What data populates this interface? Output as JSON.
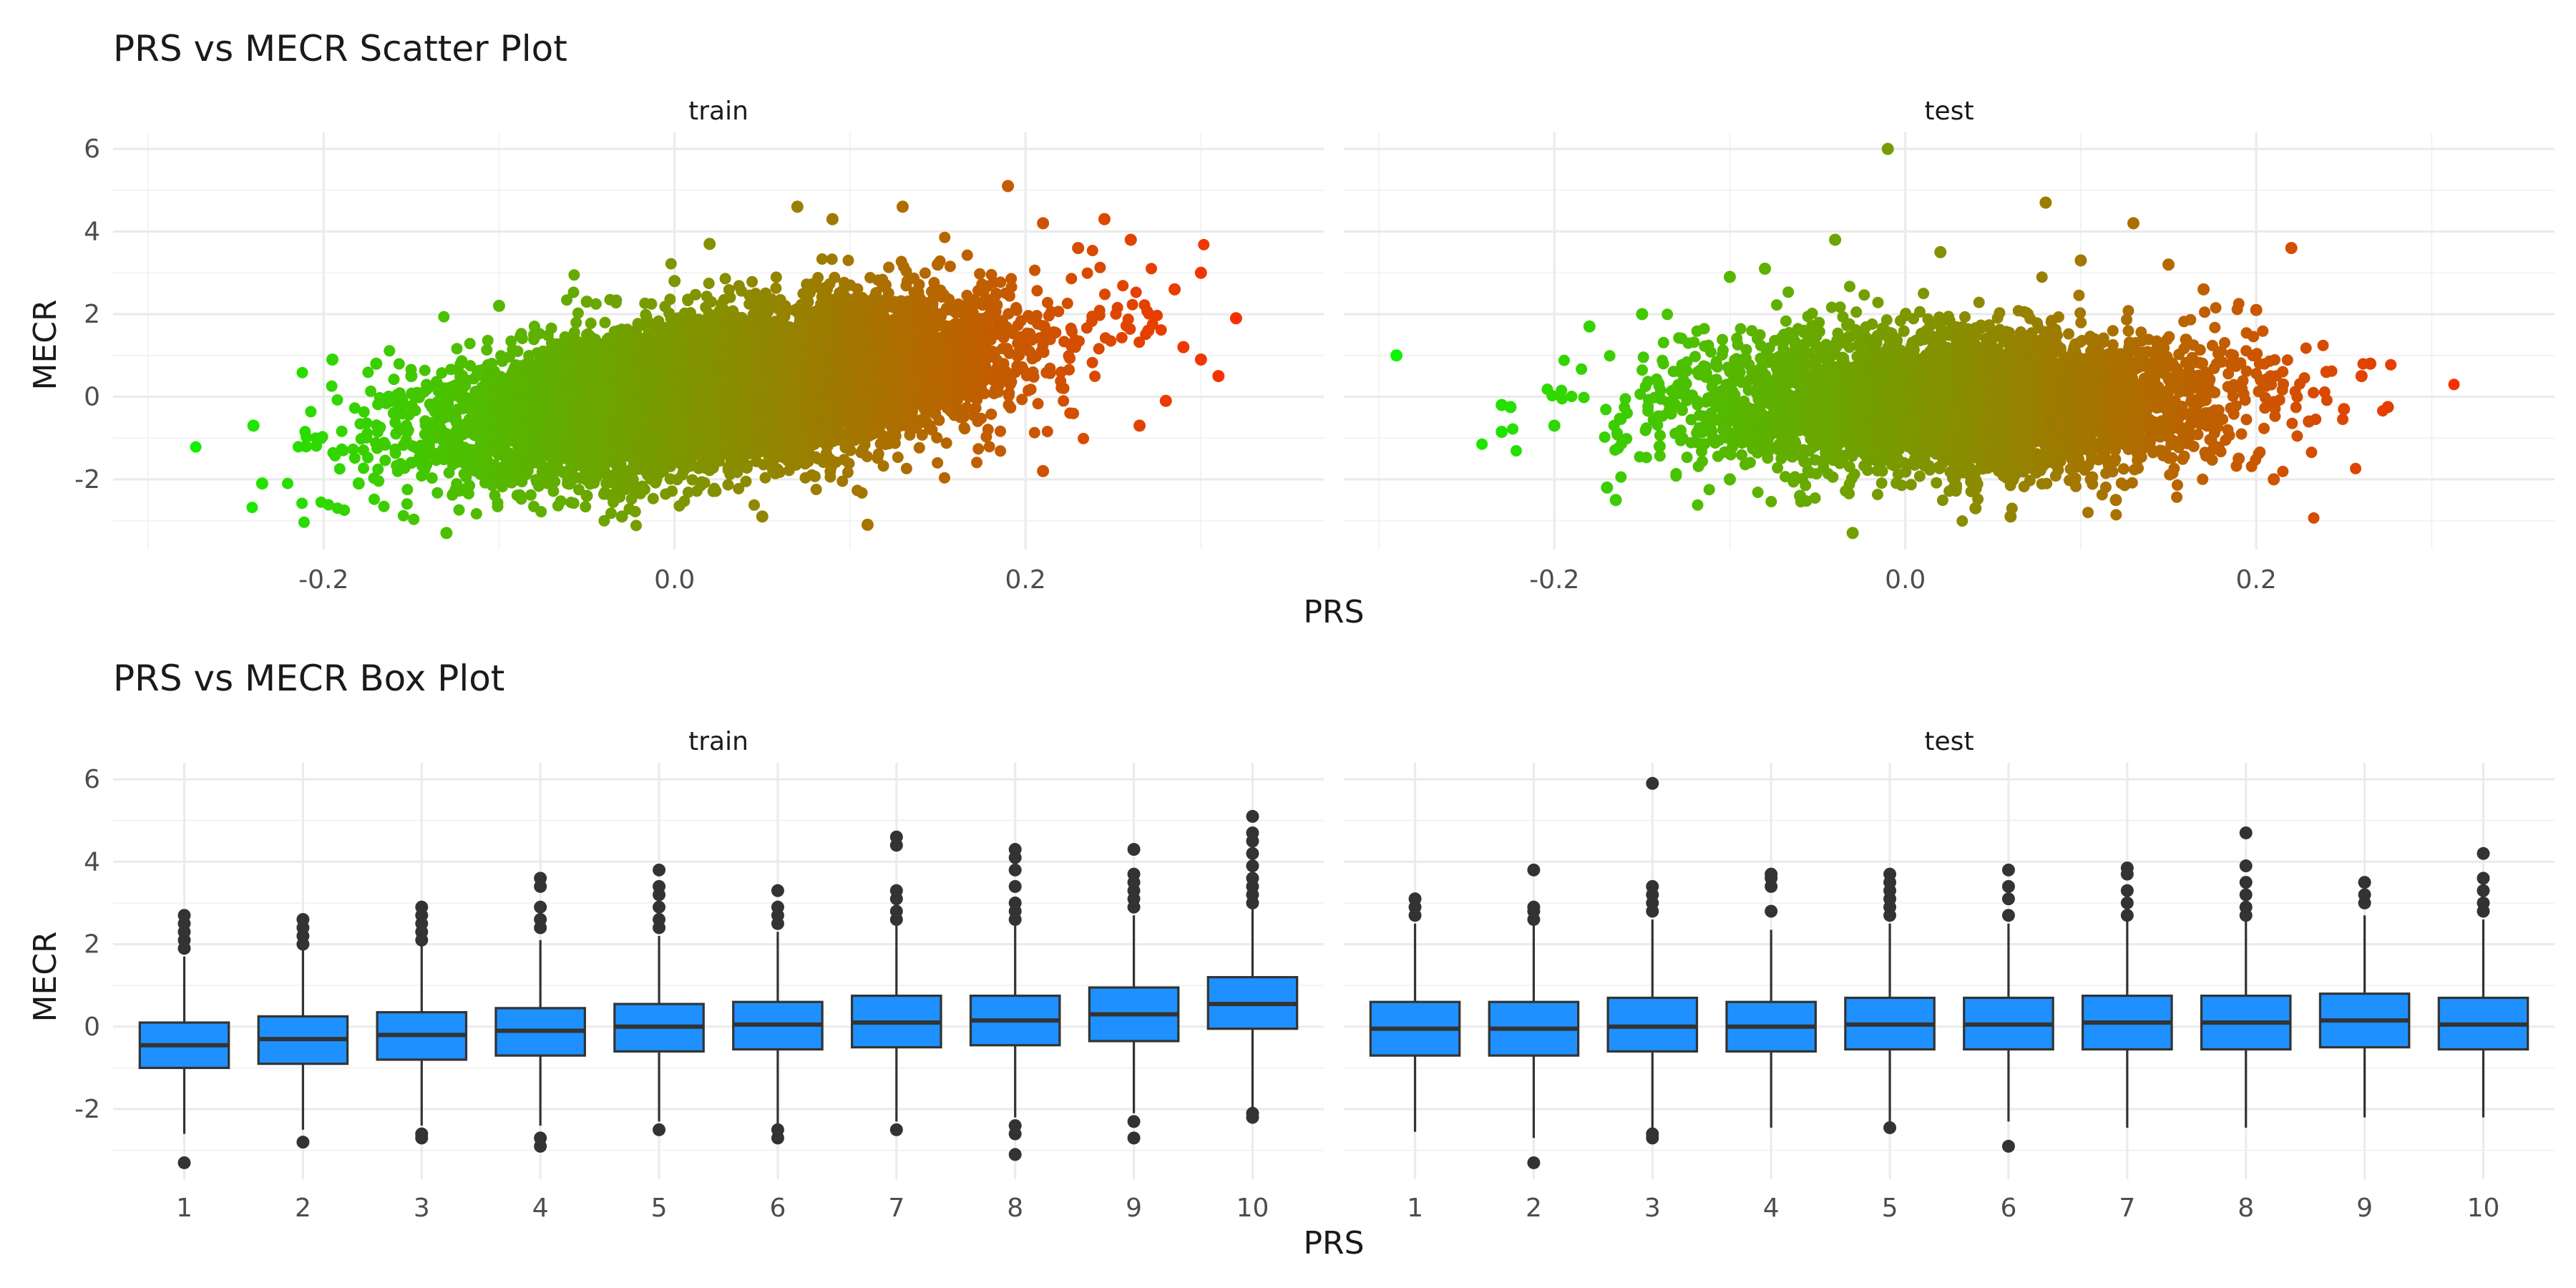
{
  "chart_data": [
    {
      "type": "scatter",
      "title": "PRS vs MECR Scatter Plot",
      "xlabel": "PRS",
      "ylabel": "MECR",
      "xlim": [
        -0.32,
        0.37
      ],
      "ylim": [
        -3.7,
        6.4
      ],
      "xticks": [
        -0.2,
        0.0,
        0.2
      ],
      "xtick_labels": [
        "-0.2",
        "0.0",
        "0.2"
      ],
      "yticks": [
        -2,
        0,
        2,
        4,
        6
      ],
      "ytick_labels": [
        "-2",
        "0",
        "2",
        "4",
        "6"
      ],
      "grid": true,
      "color_gradient": {
        "low": "#00ff00",
        "high": "#ff2a00",
        "mapped_to": "PRS"
      },
      "panels": [
        {
          "facet": "train",
          "points": [
            [
              -0.24,
              -0.7
            ],
            [
              -0.235,
              -2.1
            ],
            [
              -0.21,
              -1.2
            ],
            [
              -0.195,
              0.9
            ],
            [
              -0.18,
              -2.1
            ],
            [
              -0.17,
              0.8
            ],
            [
              -0.16,
              -0.4
            ],
            [
              -0.15,
              0.5
            ],
            [
              -0.15,
              -1.6
            ],
            [
              -0.14,
              -1.2
            ],
            [
              -0.13,
              0.2
            ],
            [
              -0.13,
              -3.3
            ],
            [
              -0.12,
              -1.6
            ],
            [
              -0.1,
              2.2
            ],
            [
              -0.08,
              1.5
            ],
            [
              -0.05,
              2.3
            ],
            [
              -0.05,
              -2.4
            ],
            [
              -0.03,
              -2.9
            ],
            [
              0.0,
              2.8
            ],
            [
              0.02,
              3.7
            ],
            [
              0.05,
              -2.9
            ],
            [
              0.07,
              4.6
            ],
            [
              0.09,
              4.3
            ],
            [
              0.11,
              -3.1
            ],
            [
              0.13,
              4.6
            ],
            [
              0.15,
              3.2
            ],
            [
              0.19,
              5.1
            ],
            [
              0.21,
              -1.8
            ],
            [
              0.21,
              4.2
            ],
            [
              0.23,
              3.6
            ],
            [
              0.245,
              4.3
            ],
            [
              0.26,
              3.8
            ],
            [
              0.265,
              -0.7
            ],
            [
              0.27,
              1.6
            ],
            [
              0.28,
              -0.1
            ],
            [
              0.285,
              2.6
            ],
            [
              0.29,
              1.2
            ],
            [
              0.3,
              0.9
            ],
            [
              0.3,
              3.0
            ],
            [
              0.31,
              0.5
            ],
            [
              0.32,
              1.9
            ]
          ]
        },
        {
          "facet": "test",
          "points": [
            [
              -0.29,
              1.0
            ],
            [
              -0.23,
              -0.2
            ],
            [
              -0.225,
              -0.25
            ],
            [
              -0.23,
              -0.85
            ],
            [
              -0.2,
              -0.7
            ],
            [
              -0.18,
              1.7
            ],
            [
              -0.17,
              -2.2
            ],
            [
              -0.165,
              -2.5
            ],
            [
              -0.15,
              2.0
            ],
            [
              -0.14,
              -1.2
            ],
            [
              -0.1,
              2.9
            ],
            [
              -0.1,
              -2.0
            ],
            [
              -0.08,
              3.1
            ],
            [
              -0.06,
              -2.4
            ],
            [
              -0.04,
              3.8
            ],
            [
              -0.03,
              -3.3
            ],
            [
              -0.01,
              6.0
            ],
            [
              0.02,
              3.5
            ],
            [
              0.04,
              -2.7
            ],
            [
              0.06,
              -2.9
            ],
            [
              0.08,
              4.7
            ],
            [
              0.1,
              3.3
            ],
            [
              0.12,
              -2.5
            ],
            [
              0.13,
              4.2
            ],
            [
              0.15,
              3.2
            ],
            [
              0.17,
              2.6
            ],
            [
              0.19,
              -1.5
            ],
            [
              0.2,
              2.1
            ],
            [
              0.21,
              -2.0
            ],
            [
              0.22,
              3.6
            ],
            [
              0.23,
              -0.6
            ],
            [
              0.24,
              0.6
            ],
            [
              0.25,
              -0.3
            ],
            [
              0.26,
              0.5
            ],
            [
              0.265,
              0.8
            ],
            [
              0.275,
              -0.25
            ]
          ]
        }
      ]
    },
    {
      "type": "box",
      "title": "PRS vs MECR Box Plot",
      "xlabel": "PRS",
      "ylabel": "MECR",
      "categories": [
        "1",
        "2",
        "3",
        "4",
        "5",
        "6",
        "7",
        "8",
        "9",
        "10"
      ],
      "ylim": [
        -3.7,
        6.4
      ],
      "yticks": [
        -2,
        0,
        2,
        4,
        6
      ],
      "ytick_labels": [
        "-2",
        "0",
        "2",
        "4",
        "6"
      ],
      "grid": true,
      "box_color": "#1e90ff",
      "panels": [
        {
          "facet": "train",
          "boxes": [
            {
              "q1": -1.0,
              "median": -0.45,
              "q3": 0.1,
              "lo": -2.6,
              "hi": 1.7,
              "outliers": [
                -3.3,
                1.9,
                2.1,
                2.3,
                2.5,
                2.7
              ]
            },
            {
              "q1": -0.9,
              "median": -0.3,
              "q3": 0.25,
              "lo": -2.5,
              "hi": 1.9,
              "outliers": [
                -2.8,
                2.0,
                2.2,
                2.4,
                2.6
              ]
            },
            {
              "q1": -0.8,
              "median": -0.2,
              "q3": 0.35,
              "lo": -2.4,
              "hi": 2.0,
              "outliers": [
                -2.7,
                -2.6,
                2.1,
                2.3,
                2.5,
                2.7,
                2.9
              ]
            },
            {
              "q1": -0.7,
              "median": -0.1,
              "q3": 0.45,
              "lo": -2.4,
              "hi": 2.1,
              "outliers": [
                -2.9,
                -2.7,
                2.4,
                2.6,
                2.9,
                3.4,
                3.6
              ]
            },
            {
              "q1": -0.6,
              "median": 0.0,
              "q3": 0.55,
              "lo": -2.3,
              "hi": 2.2,
              "outliers": [
                -2.5,
                2.4,
                2.6,
                2.9,
                3.2,
                3.4,
                3.8
              ]
            },
            {
              "q1": -0.55,
              "median": 0.05,
              "q3": 0.6,
              "lo": -2.4,
              "hi": 2.3,
              "outliers": [
                -2.7,
                -2.5,
                2.5,
                2.7,
                2.9,
                3.3
              ]
            },
            {
              "q1": -0.5,
              "median": 0.1,
              "q3": 0.75,
              "lo": -2.3,
              "hi": 2.5,
              "outliers": [
                -2.5,
                2.6,
                2.8,
                3.1,
                3.3,
                4.4,
                4.6
              ]
            },
            {
              "q1": -0.45,
              "median": 0.15,
              "q3": 0.75,
              "lo": -2.2,
              "hi": 2.5,
              "outliers": [
                -3.1,
                -2.6,
                -2.4,
                2.6,
                2.8,
                3.0,
                3.4,
                3.8,
                4.1,
                4.3
              ]
            },
            {
              "q1": -0.35,
              "median": 0.3,
              "q3": 0.95,
              "lo": -2.1,
              "hi": 2.7,
              "outliers": [
                -2.7,
                -2.3,
                2.9,
                3.1,
                3.3,
                3.5,
                3.7,
                4.3
              ]
            },
            {
              "q1": -0.05,
              "median": 0.55,
              "q3": 1.2,
              "lo": -2.0,
              "hi": 2.9,
              "outliers": [
                -2.2,
                -2.1,
                3.0,
                3.2,
                3.4,
                3.6,
                3.9,
                4.2,
                4.5,
                4.7,
                5.1
              ]
            }
          ]
        },
        {
          "facet": "test",
          "boxes": [
            {
              "q1": -0.7,
              "median": -0.05,
              "q3": 0.6,
              "lo": -2.55,
              "hi": 2.5,
              "outliers": [
                2.7,
                2.9,
                3.1
              ]
            },
            {
              "q1": -0.7,
              "median": -0.05,
              "q3": 0.6,
              "lo": -2.7,
              "hi": 2.5,
              "outliers": [
                -3.3,
                2.6,
                2.8,
                2.9,
                3.8
              ]
            },
            {
              "q1": -0.6,
              "median": 0.0,
              "q3": 0.7,
              "lo": -2.5,
              "hi": 2.6,
              "outliers": [
                -2.7,
                -2.6,
                2.8,
                3.0,
                3.2,
                3.4,
                5.9
              ]
            },
            {
              "q1": -0.6,
              "median": 0.0,
              "q3": 0.6,
              "lo": -2.45,
              "hi": 2.35,
              "outliers": [
                2.8,
                3.4,
                3.6,
                3.7
              ]
            },
            {
              "q1": -0.55,
              "median": 0.05,
              "q3": 0.7,
              "lo": -2.3,
              "hi": 2.5,
              "outliers": [
                -2.45,
                2.7,
                2.9,
                3.1,
                3.3,
                3.5,
                3.7
              ]
            },
            {
              "q1": -0.55,
              "median": 0.05,
              "q3": 0.7,
              "lo": -2.3,
              "hi": 2.5,
              "outliers": [
                -2.9,
                2.7,
                3.1,
                3.4,
                3.8
              ]
            },
            {
              "q1": -0.55,
              "median": 0.1,
              "q3": 0.75,
              "lo": -2.45,
              "hi": 2.6,
              "outliers": [
                2.7,
                3.0,
                3.3,
                3.7,
                3.85
              ]
            },
            {
              "q1": -0.55,
              "median": 0.1,
              "q3": 0.75,
              "lo": -2.45,
              "hi": 2.6,
              "outliers": [
                2.7,
                2.9,
                3.2,
                3.5,
                3.9,
                4.7
              ]
            },
            {
              "q1": -0.5,
              "median": 0.15,
              "q3": 0.8,
              "lo": -2.2,
              "hi": 2.7,
              "outliers": [
                3.0,
                3.2,
                3.5
              ]
            },
            {
              "q1": -0.55,
              "median": 0.05,
              "q3": 0.7,
              "lo": -2.2,
              "hi": 2.6,
              "outliers": [
                2.8,
                3.0,
                3.3,
                3.6,
                4.2
              ]
            }
          ]
        }
      ]
    }
  ]
}
